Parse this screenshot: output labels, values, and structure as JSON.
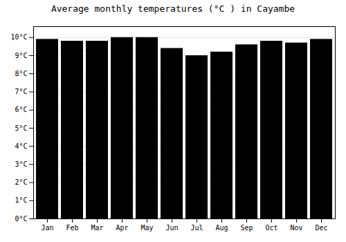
{
  "chart_data": {
    "type": "bar",
    "title": "Average monthly temperatures (°C ) in Cayambe",
    "categories": [
      "Jan",
      "Feb",
      "Mar",
      "Apr",
      "May",
      "Jun",
      "Jul",
      "Aug",
      "Sep",
      "Oct",
      "Nov",
      "Dec"
    ],
    "values": [
      9.9,
      9.8,
      9.8,
      10.0,
      10.0,
      9.4,
      9.0,
      9.2,
      9.6,
      9.8,
      9.7,
      9.9
    ],
    "ylim": [
      0,
      10.6
    ],
    "yticks": [
      {
        "value": 0,
        "label": "0°C"
      },
      {
        "value": 1,
        "label": "1°C"
      },
      {
        "value": 2,
        "label": "2°C"
      },
      {
        "value": 3,
        "label": "3°C"
      },
      {
        "value": 4,
        "label": "4°C"
      },
      {
        "value": 5,
        "label": "5°C"
      },
      {
        "value": 6,
        "label": "6°C"
      },
      {
        "value": 7,
        "label": "7°C"
      },
      {
        "value": 8,
        "label": "8°C"
      },
      {
        "value": 9,
        "label": "9°C"
      },
      {
        "value": 10,
        "label": "10°C"
      }
    ],
    "grid": true
  }
}
